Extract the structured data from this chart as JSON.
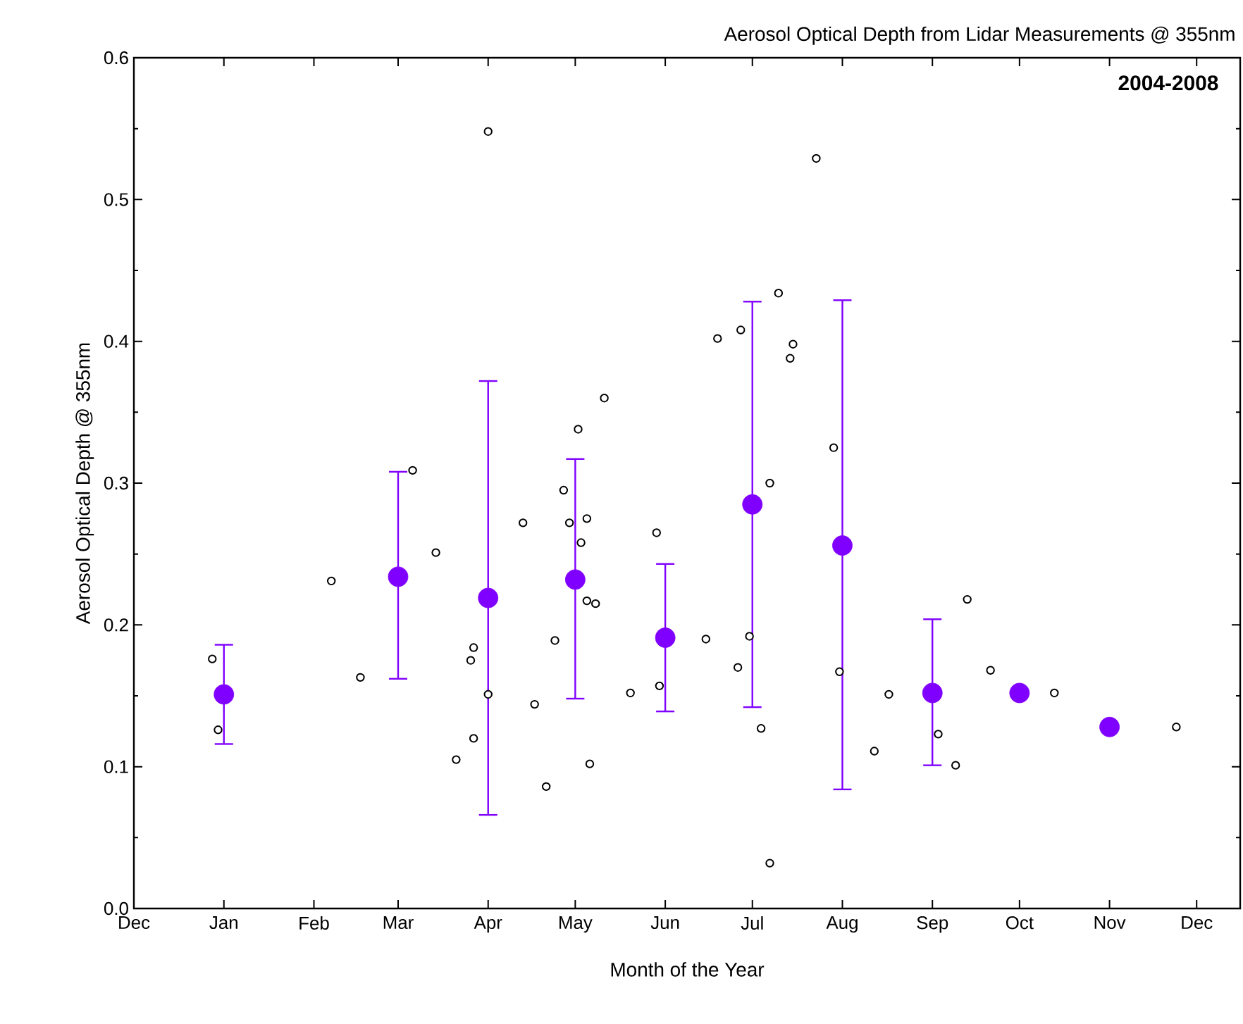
{
  "chart_data": {
    "type": "scatter",
    "title": "Aerosol Optical Depth from Lidar Measurements @ 355nm",
    "xlabel": "Month of the Year",
    "ylabel": "Aerosol Optical Depth @ 355nm",
    "annotations": [
      "2004-2008"
    ],
    "xlim": [
      "2003-12-01",
      "2004-12-16"
    ],
    "ylim": [
      0,
      0.6
    ],
    "xticks": [
      {
        "value": "2003-12-01",
        "label": "Dec"
      },
      {
        "value": "2004-01-01",
        "label": "Jan"
      },
      {
        "value": "2004-02-01",
        "label": "Feb"
      },
      {
        "value": "2004-03-01",
        "label": "Mar"
      },
      {
        "value": "2004-04-01",
        "label": "Apr"
      },
      {
        "value": "2004-05-01",
        "label": "May"
      },
      {
        "value": "2004-06-01",
        "label": "Jun"
      },
      {
        "value": "2004-07-01",
        "label": "Jul"
      },
      {
        "value": "2004-08-01",
        "label": "Aug"
      },
      {
        "value": "2004-09-01",
        "label": "Sep"
      },
      {
        "value": "2004-10-01",
        "label": "Oct"
      },
      {
        "value": "2004-11-01",
        "label": "Nov"
      },
      {
        "value": "2004-12-01",
        "label": "Dec"
      }
    ],
    "yticks": [
      {
        "value": 0,
        "label": "0.0"
      },
      {
        "value": 0.1,
        "label": "0.1"
      },
      {
        "value": 0.2,
        "label": "0.2"
      },
      {
        "value": 0.3,
        "label": "0.3"
      },
      {
        "value": 0.4,
        "label": "0.4"
      },
      {
        "value": 0.5,
        "label": "0.5"
      },
      {
        "value": 0.6,
        "label": "0.6"
      }
    ],
    "series": [
      {
        "color": "#000000",
        "x": [
          "2003-12-28",
          "2003-12-30",
          "2004-02-07",
          "2004-02-17",
          "2004-03-06",
          "2004-03-14",
          "2004-03-27",
          "2004-03-26",
          "2004-04-01",
          "2004-03-27",
          "2004-03-21",
          "2004-04-13",
          "2004-04-17",
          "2004-04-21",
          "2004-04-01",
          "2004-05-02",
          "2004-05-11",
          "2004-06-19",
          "2004-06-27",
          "2004-07-10",
          "2004-07-15",
          "2004-07-14",
          "2004-07-23",
          "2004-07-29",
          "2004-04-27",
          "2004-04-29",
          "2004-05-05",
          "2004-05-03",
          "2004-05-05",
          "2004-05-08",
          "2004-04-24",
          "2004-05-06",
          "2004-05-20",
          "2004-05-29",
          "2004-05-30",
          "2004-06-15",
          "2004-06-30",
          "2004-06-26",
          "2004-07-07",
          "2004-07-04",
          "2004-07-07",
          "2004-07-31",
          "2004-08-17",
          "2004-08-12",
          "2004-09-03",
          "2004-09-09",
          "2004-09-13",
          "2004-09-21",
          "2004-10-13",
          "2004-11-24"
        ],
        "values": [
          0.176,
          0.126,
          0.231,
          0.163,
          0.309,
          0.251,
          0.184,
          0.175,
          0.151,
          0.12,
          0.105,
          0.272,
          0.144,
          0.086,
          0.548,
          0.338,
          0.36,
          0.402,
          0.408,
          0.434,
          0.398,
          0.388,
          0.529,
          0.325,
          0.295,
          0.272,
          0.275,
          0.258,
          0.217,
          0.215,
          0.189,
          0.102,
          0.152,
          0.265,
          0.157,
          0.19,
          0.192,
          0.17,
          0.3,
          0.127,
          0.032,
          0.167,
          0.151,
          0.111,
          0.123,
          0.101,
          0.218,
          0.168,
          0.152,
          0.128
        ]
      },
      {
        "color": "#8000ff",
        "x": [
          "2004-01-01",
          "2004-03-01",
          "2004-04-01",
          "2004-05-01",
          "2004-06-01",
          "2004-07-01",
          "2004-08-01",
          "2004-09-01",
          "2004-10-01",
          "2004-11-01"
        ],
        "values": [
          0.151,
          0.234,
          0.219,
          0.232,
          0.191,
          0.285,
          0.256,
          0.152,
          0.152,
          0.128
        ],
        "errors": [
          [
            0.116,
            0.186
          ],
          [
            0.162,
            0.308
          ],
          [
            0.066,
            0.372
          ],
          [
            0.148,
            0.317
          ],
          [
            0.139,
            0.243
          ],
          [
            0.142,
            0.428
          ],
          [
            0.084,
            0.429
          ],
          [
            0.101,
            0.204
          ],
          null,
          null
        ]
      }
    ]
  }
}
